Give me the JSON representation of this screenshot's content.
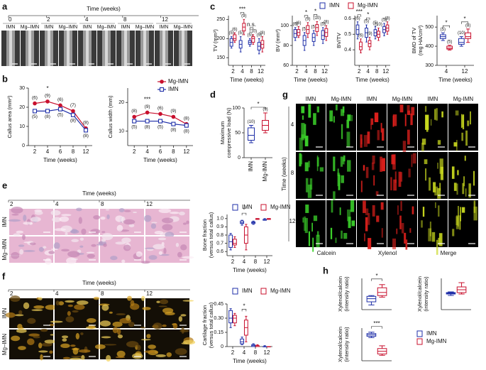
{
  "panel_labels": [
    "a",
    "b",
    "c",
    "d",
    "e",
    "f",
    "g",
    "h"
  ],
  "panel_a": {
    "axis_label": "Time (weeks)",
    "timepoints": [
      "0",
      "2",
      "4",
      "8",
      "12"
    ],
    "groups": [
      "IMN",
      "Mg–IMN"
    ]
  },
  "panel_e": {
    "axis_label": "Time (weeks)",
    "timepoints": [
      "2",
      "4",
      "8",
      "12"
    ],
    "rows": [
      "IMN",
      "Mg–IMN"
    ]
  },
  "panel_f": {
    "axis_label": "Time (weeks)",
    "timepoints": [
      "2",
      "4",
      "8",
      "12"
    ],
    "rows": [
      "IMN",
      "Mg–IMN"
    ]
  },
  "panel_g": {
    "columns": [
      "IMN",
      "Mg-IMN",
      "IMN",
      "Mg-IMN",
      "IMN",
      "Mg-IMN"
    ],
    "axis_label": "Time (weeks)",
    "rows": [
      "4",
      "8",
      "12"
    ],
    "stains": [
      "Calcein",
      "Xylenol",
      "Merge"
    ]
  },
  "chart_data": [
    {
      "type": "line",
      "ylabel": "Callus area (mm²)",
      "xlabel": "Time (weeks)",
      "categories": [
        "2",
        "4",
        "6",
        "8",
        "12"
      ],
      "series": [
        {
          "name": "Mg-IMN",
          "color": "#c8102e",
          "marker": "circle",
          "values": [
            22,
            23,
            21,
            18,
            9
          ],
          "n_labels": [
            "(6)",
            "(9)",
            "(6)",
            "(7)",
            "(8)"
          ]
        },
        {
          "name": "IMN",
          "color": "#1f2fa8",
          "marker": "square",
          "values": [
            18,
            18,
            19,
            16,
            8
          ],
          "n_labels": [
            "(5)",
            "(8)",
            "(5)",
            "(8)",
            "(8)"
          ]
        }
      ],
      "ylim": [
        0,
        30
      ],
      "yticks": [
        0,
        10,
        20,
        30
      ],
      "annotations": [
        {
          "text": "*",
          "at": "4"
        }
      ]
    },
    {
      "type": "line",
      "ylabel": "Callus width (mm)",
      "xlabel": "Time (weeks)",
      "categories": [
        "2",
        "4",
        "6",
        "8",
        "12"
      ],
      "series": [
        {
          "name": "Mg-IMN",
          "color": "#c8102e",
          "marker": "circle",
          "values": [
            15,
            16.5,
            16,
            15,
            12.5
          ],
          "n_labels": [
            "(8)",
            "(9)",
            "(6)",
            "(9)",
            "(8)"
          ]
        },
        {
          "name": "IMN",
          "color": "#1f2fa8",
          "marker": "square",
          "values": [
            13.5,
            13.5,
            13.5,
            12.5,
            12
          ],
          "n_labels": [
            "(5)",
            "(8)",
            "(5)",
            "(8)",
            "(8)"
          ]
        }
      ],
      "ylim": [
        5,
        25
      ],
      "yticks": [
        10,
        20
      ],
      "legend": "upper right",
      "annotations": [
        {
          "text": "***",
          "at": "4"
        }
      ]
    },
    {
      "type": "box",
      "ylabel": "TV (mm³)",
      "xlabel": "Time (weeks)",
      "categories": [
        "2",
        "4",
        "8",
        "12"
      ],
      "series": [
        {
          "name": "IMN",
          "color": "#1f2fa8",
          "values": [
            [
              175,
              180,
              190,
              200,
              205
            ],
            [
              165,
              175,
              185,
              195,
              205
            ],
            [
              180,
              185,
              190,
              195,
              200
            ],
            [
              160,
              170,
              180,
              190,
              200
            ]
          ],
          "n_labels": [
            "(5)",
            "(5)",
            "(5)",
            "(5)"
          ]
        },
        {
          "name": "Mg-IMN",
          "color": "#c8102e",
          "values": [
            [
              190,
              195,
              200,
              210,
              215
            ],
            [
              210,
              220,
              230,
              240,
              250
            ],
            [
              185,
              190,
              200,
              205,
              210
            ],
            [
              165,
              175,
              185,
              195,
              205
            ]
          ],
          "n_labels": [
            "(6)",
            "(9)",
            "(10)",
            "(8)"
          ]
        }
      ],
      "ylim": [
        130,
        260
      ],
      "yticks": [
        150,
        200,
        250
      ],
      "legend": "top",
      "annotations": [
        {
          "text": "***",
          "at": "4"
        },
        {
          "text": "n.s.",
          "at": "8"
        }
      ]
    },
    {
      "type": "box",
      "ylabel": "BV (mm³)",
      "xlabel": "Time (weeks)",
      "categories": [
        "2",
        "4",
        "8",
        "12"
      ],
      "series": [
        {
          "name": "IMN",
          "color": "#1f2fa8",
          "values": [
            [
              85,
              88,
              92,
              96,
              98
            ],
            [
              75,
              80,
              85,
              90,
              93
            ],
            [
              80,
              84,
              88,
              92,
              95
            ],
            [
              82,
              86,
              90,
              95,
              98
            ]
          ],
          "n_labels": [
            "(6)",
            "(5)",
            "(5)",
            "(5)"
          ]
        },
        {
          "name": "Mg-IMN",
          "color": "#c8102e",
          "values": [
            [
              88,
              90,
              93,
              96,
              99
            ],
            [
              88,
              92,
              96,
              100,
              103
            ],
            [
              90,
              94,
              98,
              101,
              104
            ],
            [
              85,
              89,
              93,
              97,
              100
            ]
          ],
          "n_labels": [
            "(6)",
            "(9)",
            "(10)",
            "(8)"
          ]
        }
      ],
      "ylim": [
        60,
        110
      ],
      "yticks": [
        60,
        80,
        100
      ],
      "annotations": [
        {
          "text": "*",
          "at": "4"
        },
        {
          "text": "*",
          "at": "8"
        }
      ]
    },
    {
      "type": "box",
      "ylabel": "BV/TV",
      "xlabel": "Time (weeks)",
      "categories": [
        "2",
        "4",
        "8",
        "12"
      ],
      "series": [
        {
          "name": "IMN",
          "color": "#1f2fa8",
          "values": [
            [
              0.47,
              0.5,
              0.53,
              0.56,
              0.58
            ],
            [
              0.45,
              0.48,
              0.51,
              0.54,
              0.56
            ],
            [
              0.47,
              0.49,
              0.51,
              0.53,
              0.55
            ],
            [
              0.49,
              0.51,
              0.53,
              0.55,
              0.57
            ]
          ],
          "n_labels": [
            "(6)",
            "(5)",
            "(5)",
            "(5)"
          ]
        },
        {
          "name": "Mg-IMN",
          "color": "#c8102e",
          "values": [
            [
              0.38,
              0.4,
              0.42,
              0.45,
              0.47
            ],
            [
              0.4,
              0.42,
              0.44,
              0.46,
              0.48
            ],
            [
              0.46,
              0.48,
              0.5,
              0.52,
              0.54
            ],
            [
              0.5,
              0.52,
              0.54,
              0.56,
              0.58
            ]
          ],
          "n_labels": [
            "(6)",
            "(9)",
            "(10)",
            "(8)"
          ]
        }
      ],
      "ylim": [
        0.3,
        0.62
      ],
      "yticks": [
        0.4,
        0.5,
        0.6
      ],
      "annotations": [
        {
          "text": "***",
          "at": "2"
        },
        {
          "text": "*",
          "at": "4"
        }
      ]
    },
    {
      "type": "box",
      "ylabel": [
        "BMD of TV",
        "(mg HA/cm³)"
      ],
      "xlabel": "Time (weeks)",
      "categories": [
        "4",
        "12"
      ],
      "series": [
        {
          "name": "IMN",
          "color": "#1f2fa8",
          "values": [
            [
              430,
              440,
              450,
              460,
              470
            ],
            [
              400,
              410,
              420,
              440,
              450
            ]
          ],
          "n_labels": [
            "(5)",
            "(10)"
          ]
        },
        {
          "name": "Mg-IMN",
          "color": "#c8102e",
          "values": [
            [
              380,
              385,
              390,
              400,
              405
            ],
            [
              420,
              440,
              450,
              470,
              490
            ]
          ],
          "n_labels": [
            "(5)",
            "(8)"
          ]
        }
      ],
      "ylim": [
        300,
        560
      ],
      "yticks": [
        300,
        400,
        500
      ],
      "annotations": [
        {
          "text": "*",
          "at": "4"
        },
        {
          "text": "*",
          "at": "12"
        }
      ]
    },
    {
      "type": "box",
      "ylabel": [
        "Maximum",
        "compressive load (N)"
      ],
      "categories": [
        "IMN",
        "Mg-IMN"
      ],
      "series": [
        {
          "colors": [
            "#1f2fa8",
            "#c8102e"
          ],
          "values": [
            [
              30,
              35,
              45,
              60,
              65
            ],
            [
              50,
              55,
              65,
              75,
              90
            ]
          ],
          "n_labels": [
            "(10)",
            "(9)"
          ]
        }
      ],
      "ylim": [
        0,
        100
      ],
      "yticks": [
        0,
        50,
        100
      ],
      "annotations": [
        {
          "text": "*"
        }
      ]
    },
    {
      "type": "box",
      "ylabel": [
        "Bone fraction",
        "(versus total callus)"
      ],
      "xlabel": "Time (weeks)",
      "categories": [
        "2",
        "4",
        "8",
        "12"
      ],
      "series": [
        {
          "name": "IMN",
          "color": "#1f2fa8",
          "values": [
            [
              0.62,
              0.65,
              0.72,
              0.8,
              0.82
            ],
            [
              0.92,
              0.94,
              0.95,
              0.97,
              0.98
            ],
            [
              0.93,
              0.94,
              0.95,
              0.96,
              0.97
            ],
            [
              0.98,
              0.98,
              0.99,
              0.99,
              1.0
            ]
          ]
        },
        {
          "name": "Mg-IMN",
          "color": "#c8102e",
          "values": [
            [
              0.65,
              0.68,
              0.7,
              0.75,
              0.78
            ],
            [
              0.62,
              0.7,
              0.8,
              0.9,
              0.93
            ],
            [
              0.99,
              0.99,
              1,
              1,
              1
            ],
            [
              0.99,
              0.99,
              1,
              1,
              1
            ]
          ]
        }
      ],
      "ylim": [
        0.55,
        1.05
      ],
      "yticks": [
        0.6,
        0.7,
        0.8,
        0.9,
        {
          "value": 1,
          "label": "1.0"
        }
      ],
      "legend": "top",
      "annotations": [
        {
          "text": "*",
          "at": "4"
        }
      ]
    },
    {
      "type": "box",
      "ylabel": [
        "Cartilage fraction",
        "(versus total callus)"
      ],
      "xlabel": "Time (weeks)",
      "categories": [
        "2",
        "4",
        "8",
        "12"
      ],
      "series": [
        {
          "name": "IMN",
          "color": "#1f2fa8",
          "values": [
            [
              0.2,
              0.25,
              0.3,
              0.38,
              0.4
            ],
            [
              0.02,
              0.03,
              0.05,
              0.08,
              0.1
            ],
            [
              0,
              0,
              0.01,
              0.02,
              0.03
            ],
            [
              0,
              0,
              0,
              0,
              0.01
            ]
          ]
        },
        {
          "name": "Mg-IMN",
          "color": "#c8102e",
          "values": [
            [
              0.22,
              0.25,
              0.3,
              0.33,
              0.35
            ],
            [
              0.05,
              0.12,
              0.2,
              0.28,
              0.32
            ],
            [
              0,
              0,
              0.01,
              0.01,
              0.02
            ],
            [
              0,
              0,
              0,
              0,
              0
            ]
          ]
        }
      ],
      "ylim": [
        0,
        0.45
      ],
      "yticks": [
        0,
        0.15,
        {
          "value": 0.3,
          "label": "0.30"
        },
        0.45
      ],
      "legend": "top",
      "annotations": [
        {
          "text": "*",
          "at": "4"
        }
      ]
    },
    {
      "type": "box",
      "ylabel": [
        "Xylenol/calcein",
        "(intensity ratio)"
      ],
      "categories": [
        null
      ],
      "series": [
        {
          "name": "IMN",
          "color": "#1f2fa8",
          "values": [
            [
              0.3,
              0.5,
              0.7,
              0.85,
              0.9
            ]
          ]
        },
        {
          "name": "Mg-IMN",
          "color": "#c8102e",
          "values": [
            [
              0.8,
              0.9,
              1.1,
              1.4,
              1.6
            ]
          ]
        }
      ],
      "ylim": [
        0,
        2
      ],
      "annotations": [
        {
          "text": "*"
        }
      ]
    },
    {
      "type": "box",
      "ylabel": [
        "Xylenol/calcein",
        "(intensity ratio)"
      ],
      "categories": [
        null
      ],
      "series": [
        {
          "name": "IMN",
          "color": "#1f2fa8",
          "values": [
            [
              1.0,
              1.1,
              1.15,
              1.2,
              1.25
            ]
          ]
        },
        {
          "name": "Mg-IMN",
          "color": "#c8102e",
          "values": [
            [
              1.1,
              1.2,
              1.4,
              1.6,
              1.9
            ]
          ]
        }
      ],
      "ylim": [
        0,
        2.2
      ]
    },
    {
      "type": "box",
      "ylabel": [
        "Xylenol/calcein",
        "(intensity ratio)"
      ],
      "categories": [
        null
      ],
      "series": [
        {
          "name": "IMN",
          "color": "#1f2fa8",
          "values": [
            [
              1.7,
              1.8,
              1.9,
              2.0,
              2.1
            ]
          ]
        },
        {
          "name": "Mg-IMN",
          "color": "#c8102e",
          "values": [
            [
              0.4,
              0.5,
              0.7,
              0.9,
              1.1
            ]
          ]
        }
      ],
      "ylim": [
        0,
        2.4
      ],
      "legend": "right",
      "annotations": [
        {
          "text": "***"
        }
      ]
    }
  ]
}
